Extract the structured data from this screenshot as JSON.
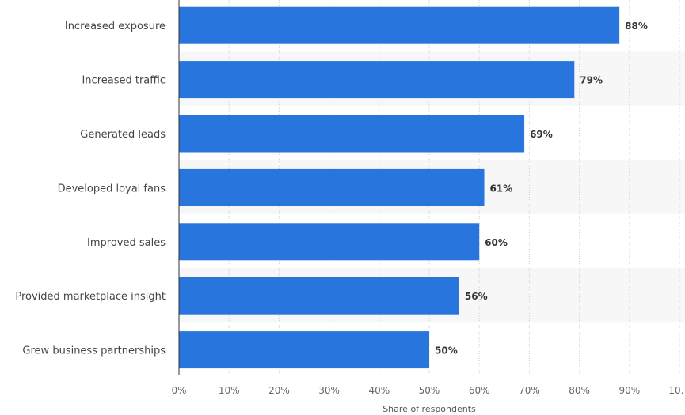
{
  "chart_data": {
    "type": "bar",
    "orientation": "horizontal",
    "categories": [
      "Increased exposure",
      "Increased traffic",
      "Generated leads",
      "Developed loyal fans",
      "Improved sales",
      "Provided marketplace insight",
      "Grew business partnerships"
    ],
    "values": [
      88,
      79,
      69,
      61,
      60,
      56,
      50
    ],
    "value_labels": [
      "88%",
      "79%",
      "69%",
      "61%",
      "60%",
      "56%",
      "50%"
    ],
    "xlabel": "Share of respondents",
    "ylabel": "",
    "xlim": [
      0,
      100
    ],
    "xticks": [
      "0%",
      "10%",
      "20%",
      "30%",
      "40%",
      "50%",
      "60%",
      "70%",
      "80%",
      "90%",
      "10…"
    ],
    "grid": true,
    "bar_color": "#2876dd"
  }
}
